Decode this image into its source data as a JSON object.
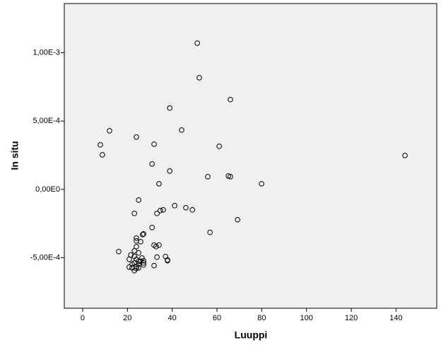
{
  "chart_data": {
    "type": "scatter",
    "x_label": "Luuppi",
    "y_label": "In situ",
    "xlim": [
      -8.2,
      158.2
    ],
    "ylim": [
      -0.00087,
      0.00136
    ],
    "xticks": [
      0,
      20,
      40,
      60,
      80,
      100,
      120,
      140
    ],
    "yticks": [
      {
        "value": -0.0005,
        "label": "-5,00E-4"
      },
      {
        "value": 0,
        "label": "0,00E0"
      },
      {
        "value": 0.0005,
        "label": "5,00E-4"
      },
      {
        "value": 0.001,
        "label": "1,00E-3"
      }
    ],
    "color": "#000000",
    "background": "#f0f0f0",
    "x": [
      51.2,
      52.1,
      66.0,
      38.9,
      12.0,
      44.2,
      24.0,
      31.9,
      7.9,
      61.0,
      8.8,
      144.0,
      31.0,
      38.9,
      55.9,
      65.1,
      66.0,
      79.9,
      34.1,
      25.0,
      41.1,
      46.1,
      49.0,
      36.0,
      34.7,
      23.1,
      33.2,
      69.2,
      31.0,
      56.9,
      27.2,
      26.8,
      24.0,
      24.0,
      25.9,
      31.9,
      34.1,
      32.8,
      24.0,
      23.1,
      16.1,
      25.0,
      21.5,
      23.1,
      37.0,
      33.2,
      26.5,
      20.8,
      24.0,
      37.9,
      37.9,
      27.2,
      25.0,
      25.9,
      23.1,
      27.2,
      22.1,
      25.0,
      27.2,
      31.9,
      24.0,
      20.8,
      22.1,
      25.0,
      24.0,
      23.1
    ],
    "values": [
      0.00107,
      0.000817,
      0.000657,
      0.000595,
      0.000429,
      0.000434,
      0.000383,
      0.000331,
      0.000326,
      0.000315,
      0.000253,
      0.000248,
      0.000186,
      0.000134,
      9.3e-05,
      9.8e-05,
      9.3e-05,
      4.1e-05,
      4.1e-05,
      -7.8e-05,
      -0.000119,
      -0.000134,
      -0.00015,
      -0.00015,
      -0.000155,
      -0.000176,
      -0.000176,
      -0.000222,
      -0.000279,
      -0.000315,
      -0.000326,
      -0.000331,
      -0.000357,
      -0.000377,
      -0.000383,
      -0.000408,
      -0.000408,
      -0.000419,
      -0.000419,
      -0.00045,
      -0.000455,
      -0.000465,
      -0.000481,
      -0.000491,
      -0.000491,
      -0.000496,
      -0.000502,
      -0.000512,
      -0.000512,
      -0.000517,
      -0.000522,
      -0.000522,
      -0.000527,
      -0.000527,
      -0.000538,
      -0.000538,
      -0.000548,
      -0.000548,
      -0.000553,
      -0.000558,
      -0.000564,
      -0.000569,
      -0.000574,
      -0.000574,
      -0.000579,
      -0.000595
    ]
  }
}
